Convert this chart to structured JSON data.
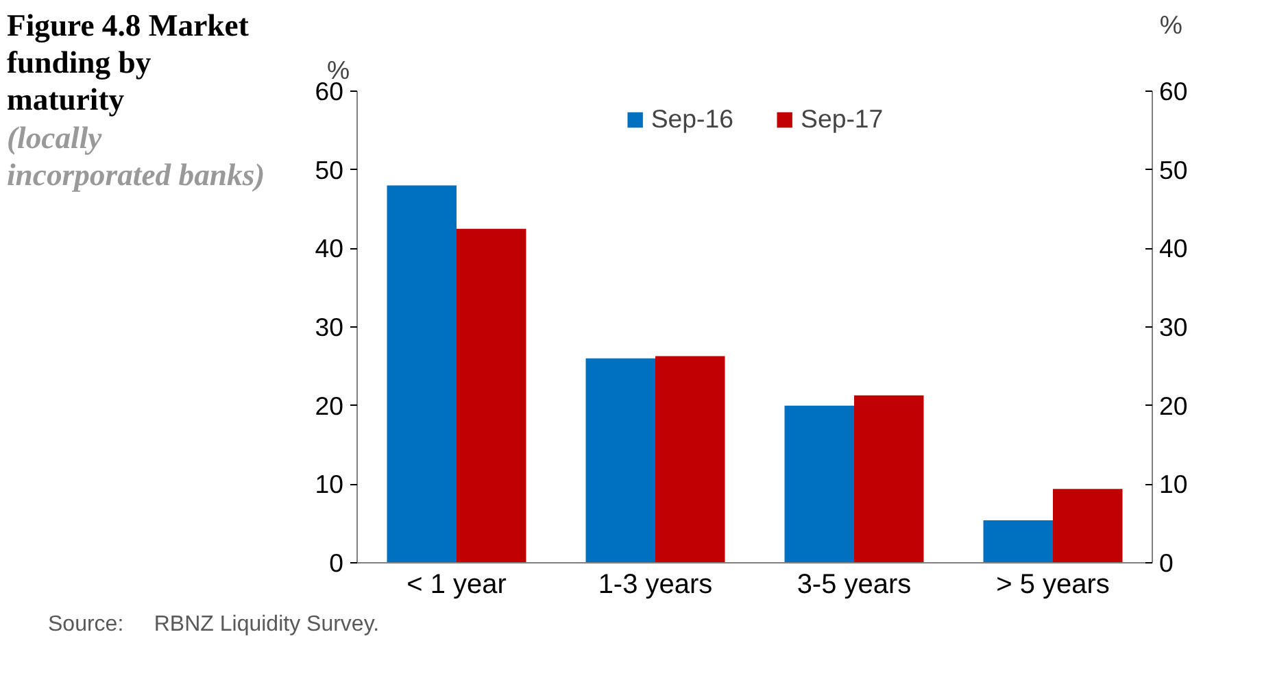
{
  "chart_data": {
    "type": "bar",
    "title": "Figure 4.8 Market funding by maturity",
    "subtitle": "(locally incorporated banks)",
    "ylabel": "%",
    "y2label": "%",
    "categories": [
      "< 1 year",
      "1-3 years",
      "3-5 years",
      "> 5 years"
    ],
    "series": [
      {
        "name": "Sep-16",
        "color": "#0070c0",
        "values": [
          48,
          26,
          20,
          5.4
        ]
      },
      {
        "name": "Sep-17",
        "color": "#c00000",
        "values": [
          42.5,
          26.3,
          21.3,
          9.4
        ]
      }
    ],
    "ylim": [
      0,
      60
    ],
    "yticks": [
      0,
      10,
      20,
      30,
      40,
      50,
      60
    ],
    "y2lim": [
      0,
      60
    ],
    "y2ticks": [
      0,
      10,
      20,
      30,
      40,
      50,
      60
    ],
    "grid": false,
    "legend": "top",
    "annotations": [
      "Source:     RBNZ Liquidity Survey."
    ]
  }
}
